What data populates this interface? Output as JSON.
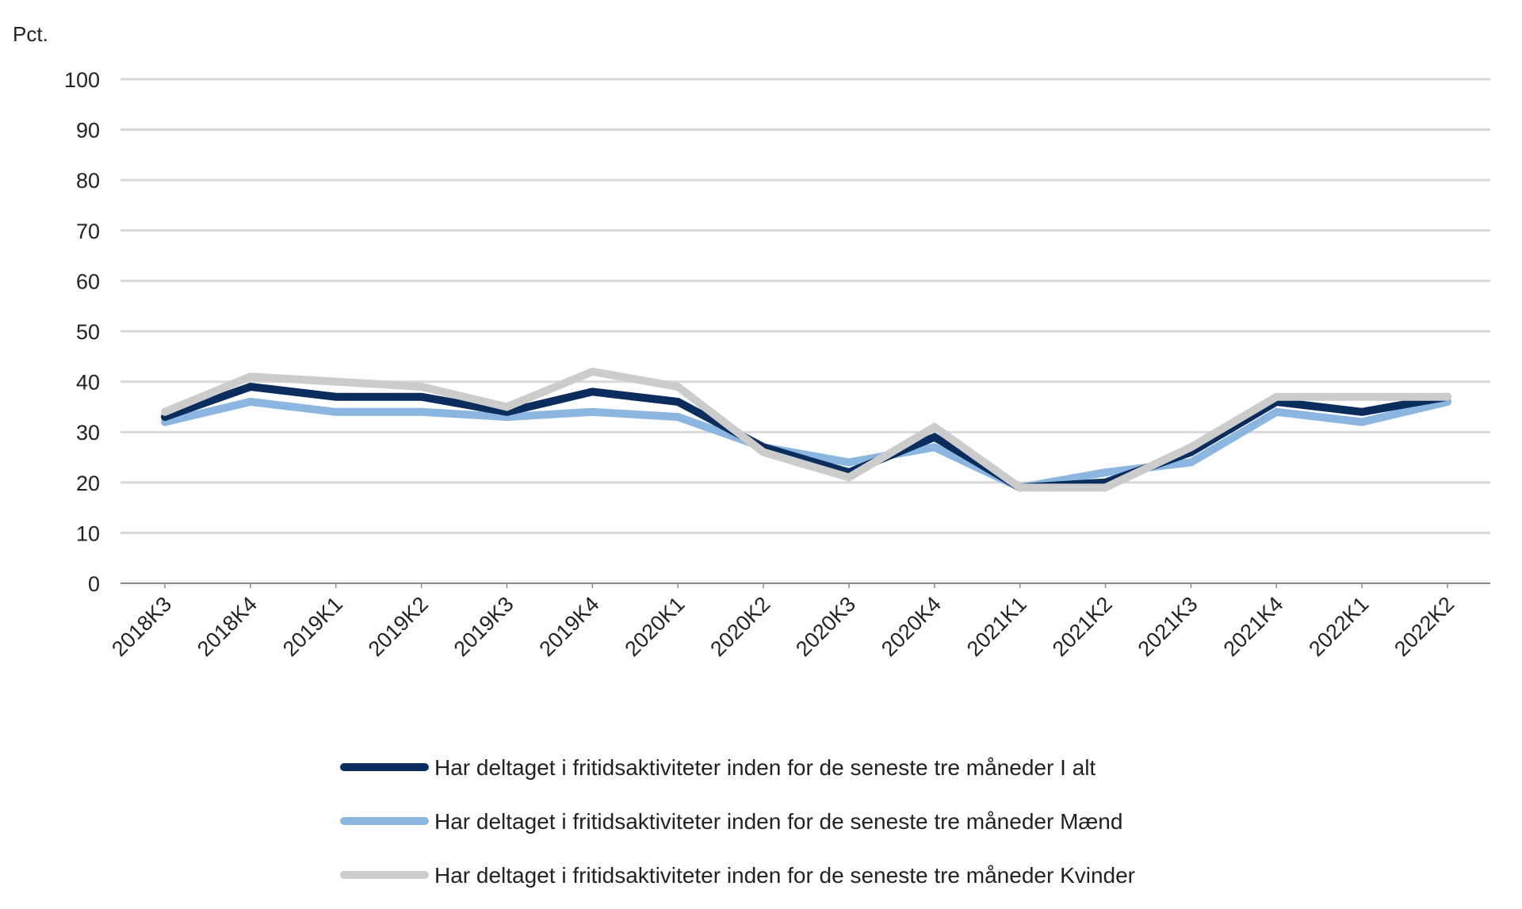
{
  "chart_data": {
    "type": "line",
    "y_unit_label": "Pct.",
    "ylim": [
      0,
      100
    ],
    "yticks": [
      0,
      10,
      20,
      30,
      40,
      50,
      60,
      70,
      80,
      90,
      100
    ],
    "grid": true,
    "legend_position": "bottom",
    "categories": [
      "2018K3",
      "2018K4",
      "2019K1",
      "2019K2",
      "2019K3",
      "2019K4",
      "2020K1",
      "2020K2",
      "2020K3",
      "2020K4",
      "2021K1",
      "2021K2",
      "2021K3",
      "2021K4",
      "2022K1",
      "2022K2"
    ],
    "series": [
      {
        "name": "Har deltaget i fritidsaktiviteter inden for de seneste tre måneder I alt",
        "color": "#0b2d5e",
        "values": [
          33,
          39,
          37,
          37,
          34,
          38,
          36,
          27,
          22,
          29,
          19,
          20,
          26,
          36,
          34,
          37
        ]
      },
      {
        "name": "Har deltaget i fritidsaktiviteter inden for de seneste tre måneder Mænd",
        "color": "#8ab6e0",
        "values": [
          32,
          36,
          34,
          34,
          33,
          34,
          33,
          27,
          24,
          27,
          19,
          22,
          24,
          34,
          32,
          36
        ]
      },
      {
        "name": "Har deltaget i fritidsaktiviteter inden for de seneste tre måneder Kvinder",
        "color": "#cccccc",
        "values": [
          34,
          41,
          40,
          39,
          35,
          42,
          39,
          26,
          21,
          31,
          19,
          19,
          27,
          37,
          37,
          37
        ]
      }
    ]
  }
}
